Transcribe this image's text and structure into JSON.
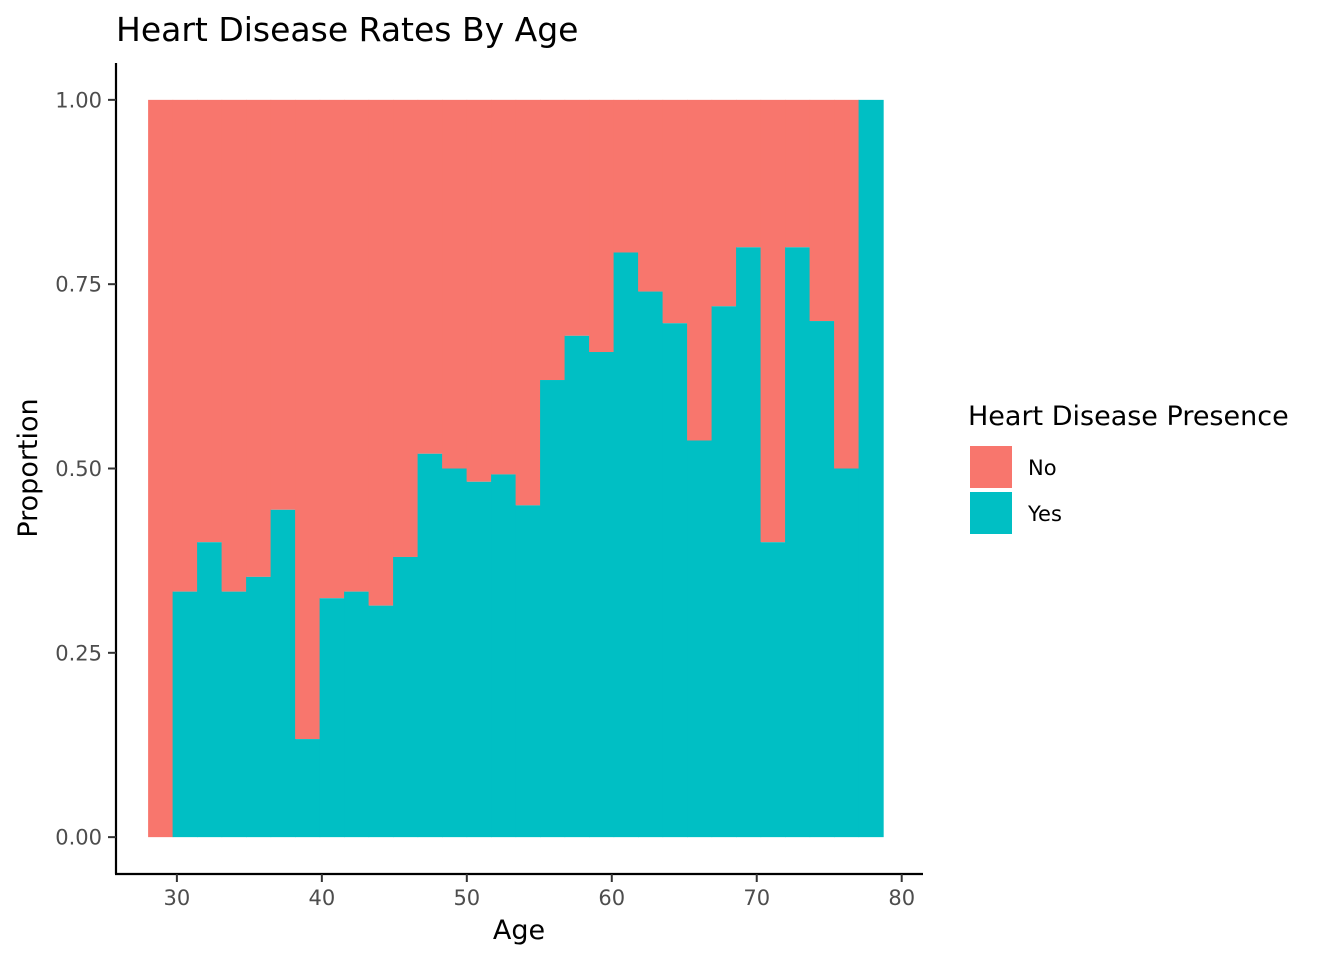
{
  "chart_data": {
    "type": "bar",
    "stacked": "fill",
    "title": "Heart Disease Rates By Age",
    "xlabel": "Age",
    "ylabel": "Proportion",
    "xlim": [
      25.8,
      81.4
    ],
    "ylim": [
      -0.05,
      1.05
    ],
    "bin_width": 1.69,
    "x_ticks": [
      30,
      40,
      50,
      60,
      70,
      80
    ],
    "x_tick_labels": [
      "30",
      "40",
      "50",
      "60",
      "70",
      "80"
    ],
    "y_ticks": [
      0,
      0.25,
      0.5,
      0.75,
      1.0
    ],
    "y_tick_labels": [
      "0.00",
      "0.25",
      "0.50",
      "0.75",
      "1.00"
    ],
    "bins": [
      {
        "x": 28.86,
        "yes": 0.0
      },
      {
        "x": 30.55,
        "yes": 0.333
      },
      {
        "x": 32.24,
        "yes": 0.4
      },
      {
        "x": 33.93,
        "yes": 0.333
      },
      {
        "x": 35.62,
        "yes": 0.353
      },
      {
        "x": 37.31,
        "yes": 0.444
      },
      {
        "x": 39.0,
        "yes": 0.133
      },
      {
        "x": 40.69,
        "yes": 0.324
      },
      {
        "x": 42.38,
        "yes": 0.333
      },
      {
        "x": 44.07,
        "yes": 0.314
      },
      {
        "x": 45.76,
        "yes": 0.38
      },
      {
        "x": 47.45,
        "yes": 0.52
      },
      {
        "x": 49.14,
        "yes": 0.5
      },
      {
        "x": 50.83,
        "yes": 0.482
      },
      {
        "x": 52.52,
        "yes": 0.492
      },
      {
        "x": 54.21,
        "yes": 0.45
      },
      {
        "x": 55.9,
        "yes": 0.62
      },
      {
        "x": 57.59,
        "yes": 0.68
      },
      {
        "x": 59.28,
        "yes": 0.658
      },
      {
        "x": 60.97,
        "yes": 0.793
      },
      {
        "x": 62.66,
        "yes": 0.74
      },
      {
        "x": 64.35,
        "yes": 0.697
      },
      {
        "x": 66.04,
        "yes": 0.538
      },
      {
        "x": 67.73,
        "yes": 0.72
      },
      {
        "x": 69.42,
        "yes": 0.8
      },
      {
        "x": 71.11,
        "yes": 0.4
      },
      {
        "x": 72.8,
        "yes": 0.8
      },
      {
        "x": 74.49,
        "yes": 0.7
      },
      {
        "x": 76.18,
        "yes": 0.5
      },
      {
        "x": 77.87,
        "yes": 1.0
      }
    ],
    "series": [
      {
        "name": "No",
        "color": "#F8766D"
      },
      {
        "name": "Yes",
        "color": "#00BFC4"
      }
    ],
    "legend": {
      "title": "Heart Disease Presence",
      "position": "right"
    },
    "grid": false
  }
}
